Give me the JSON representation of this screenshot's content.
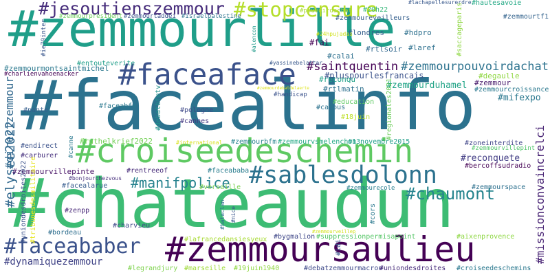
{
  "words": [
    {
      "text": "#zemmourlille",
      "color": "#1f9e89"
    },
    {
      "text": "#facealinfo",
      "color": "#2c728e"
    },
    {
      "text": "#chateaudun",
      "color": "#3dbc74"
    },
    {
      "text": "#croiseedeschemin",
      "color": "#5ec962"
    },
    {
      "text": "#zemmoursaulieu",
      "color": "#440154"
    },
    {
      "text": "#faceaface",
      "color": "#3b528b"
    },
    {
      "text": "#jesoutienszemmour",
      "color": "#472d7b"
    },
    {
      "text": "#stopcensure",
      "color": "#b5de2b"
    },
    {
      "text": "#sablesdolonn",
      "color": "#2c728e"
    },
    {
      "text": "#faceababer",
      "color": "#3b528b"
    },
    {
      "text": "#chaumont",
      "color": "#25848e"
    },
    {
      "text": "#manifpolice",
      "color": "#26828e"
    },
    {
      "text": "#saintquentin",
      "color": "#440154"
    },
    {
      "text": "#zemmourpouvoirdachat",
      "color": "#2c728e"
    },
    {
      "text": "#elysee2022",
      "color": "#31688e"
    },
    {
      "text": "#directzemmour",
      "color": "#31688e"
    },
    {
      "text": "#missionconvaincrelci",
      "color": "#482374"
    },
    {
      "text": "#dynamiquezemmour",
      "color": "#414487"
    },
    {
      "text": "#mifexpo",
      "color": "#2a788e"
    },
    {
      "text": "#zemmourduhamel",
      "color": "#20a386"
    },
    {
      "text": "#pluspourlesfrancais",
      "color": "#3b528b"
    },
    {
      "text": "#reconquete",
      "color": "#433e85"
    },
    {
      "text": "#zemmourmontsaintmichel",
      "color": "#2a788e"
    },
    {
      "text": "#charlienvahoenacker",
      "color": "#440154"
    },
    {
      "text": "#zemmourpresident",
      "color": "#6ccd5a"
    },
    {
      "text": "#zemmourtaddei",
      "color": "#3b528b"
    },
    {
      "text": "#israelpalestine",
      "color": "#2c728e"
    },
    {
      "text": "#zemmoureveilleurs",
      "color": "#355f8d"
    },
    {
      "text": "#pouvoirdachat",
      "color": "#aadc32"
    },
    {
      "text": "#20h22",
      "color": "#35b779"
    },
    {
      "text": "#lachapellesurerdre",
      "color": "#38588c"
    },
    {
      "text": "#hautesavoie",
      "color": "#22a884"
    },
    {
      "text": "#zemmourtf1",
      "color": "#33638d"
    },
    {
      "text": "#londres",
      "color": "#355f8d"
    },
    {
      "text": "#hdpro",
      "color": "#2d708e"
    },
    {
      "text": "#24hpujadas",
      "color": "#d0e11c"
    },
    {
      "text": "#fai",
      "color": "#440154"
    },
    {
      "text": "#laref",
      "color": "#2d708e"
    },
    {
      "text": "#saccageparis",
      "color": "#8fd744"
    },
    {
      "text": "#ie79inter",
      "color": "#39568c"
    },
    {
      "text": "#calai",
      "color": "#2d708e"
    },
    {
      "text": "#rtlsoir",
      "color": "#31688e"
    },
    {
      "text": "#alencon",
      "color": "#1f9a8a"
    },
    {
      "text": "#entouteverite",
      "color": "#1f9e89"
    },
    {
      "text": "#yassinebelattar",
      "color": "#38588c"
    },
    {
      "text": "#degaulle",
      "color": "#90d743"
    },
    {
      "text": "#zemmour",
      "color": "#481a6c"
    },
    {
      "text": "#zemmourcroissance",
      "color": "#2a788e"
    },
    {
      "text": "#reconqu",
      "color": "#1fa187"
    },
    {
      "text": "#rtlmatin",
      "color": "#2d708e"
    },
    {
      "text": "#zemmourdebatdelaerte",
      "color": "#dde318"
    },
    {
      "text": "#handicap",
      "color": "#3b528b"
    },
    {
      "text": "#education",
      "color": "#5ec962"
    },
    {
      "text": "#cavous",
      "color": "#2c728e"
    },
    {
      "text": "#regionales2021",
      "color": "#6ccd5a"
    },
    {
      "text": "#18juin",
      "color": "#bddf26"
    },
    {
      "text": "#nante",
      "color": "#355f8d"
    },
    {
      "text": "#faceabfm",
      "color": "#2a788e"
    },
    {
      "text": "#debatbfmtv",
      "color": "#21918c"
    },
    {
      "text": "#pologne",
      "color": "#3e4989"
    },
    {
      "text": "#cannes",
      "color": "#443983"
    },
    {
      "text": "#ruthelkrief2022",
      "color": "#73d056"
    },
    {
      "text": "#international",
      "color": "#d8e219"
    },
    {
      "text": "#zemmourbfm",
      "color": "#26828e"
    },
    {
      "text": "#zemmourvsmelenchon",
      "color": "#22a884"
    },
    {
      "text": "#13novembre2015",
      "color": "#1f9e89"
    },
    {
      "text": "#zoneinterdite",
      "color": "#404688"
    },
    {
      "text": "#zemmourvillepint",
      "color": "#50c46a"
    },
    {
      "text": "#endirect",
      "color": "#3b528b"
    },
    {
      "text": "#carburer",
      "color": "#46307e"
    },
    {
      "text": "#canne",
      "color": "#2a788e"
    },
    {
      "text": "#bercoffsudradio",
      "color": "#440154"
    },
    {
      "text": "#zemmourvillepinte",
      "color": "#481467"
    },
    {
      "text": "#rentreeof",
      "color": "#472c7a"
    },
    {
      "text": "#faceababa",
      "color": "#287c8e"
    },
    {
      "text": "#versaille",
      "color": "#7ad151"
    },
    {
      "text": "#zemmourecole",
      "color": "#287d8e"
    },
    {
      "text": "#zemmourspace",
      "color": "#2d708e"
    },
    {
      "text": "#bonjourchezvous",
      "color": "#472f7d"
    },
    {
      "text": "#facealarue",
      "color": "#375b8d"
    },
    {
      "text": "#uniondesdroites2022",
      "color": "#3b528b"
    },
    {
      "text": "#tribunesdesmilitaire",
      "color": "#e5e419"
    },
    {
      "text": "#zenpp",
      "color": "#482878"
    },
    {
      "text": "#bataclan",
      "color": "#2e6e8e"
    },
    {
      "text": "#nice",
      "color": "#39568c"
    },
    {
      "text": "#cors",
      "color": "#2a788e"
    },
    {
      "text": "#zemmourveillep",
      "color": "#d2e21b"
    },
    {
      "text": "#bordeau",
      "color": "#2e6e8e"
    },
    {
      "text": "#charvieu",
      "color": "#3e4a89"
    },
    {
      "text": "#lafrancedansiesyeux",
      "color": "#a8db34"
    },
    {
      "text": "#bygmalion",
      "color": "#3f4788"
    },
    {
      "text": "#suppressionpermisapoint",
      "color": "#56c667"
    },
    {
      "text": "#aixenprovence",
      "color": "#8fd744"
    },
    {
      "text": "#idi",
      "color": "#3b528b"
    },
    {
      "text": "#legrandjury",
      "color": "#7fd34e"
    },
    {
      "text": "#marseille",
      "color": "#9fda3a"
    },
    {
      "text": "#19juin1940",
      "color": "#90d743"
    },
    {
      "text": "#debatzemmourmacron",
      "color": "#3e4989"
    },
    {
      "text": "#uniondesdroites",
      "color": "#472c7a"
    },
    {
      "text": "#croiseedeschemins",
      "color": "#2a788e"
    }
  ]
}
